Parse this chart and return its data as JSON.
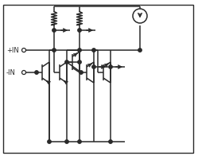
{
  "bg_color": "#ffffff",
  "line_color": "#2a2a2a",
  "figsize": [
    2.49,
    1.96
  ],
  "dpi": 100,
  "border": [
    4,
    4,
    243,
    190
  ]
}
